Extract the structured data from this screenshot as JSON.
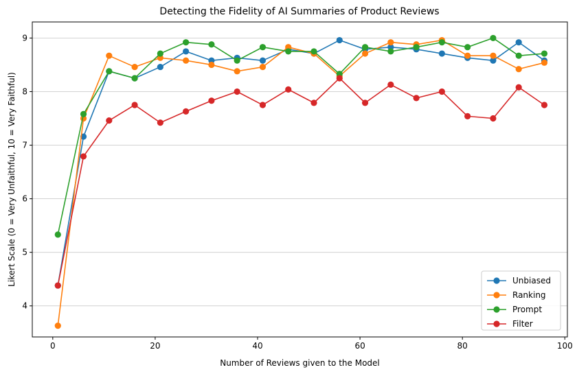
{
  "chart_data": {
    "type": "line",
    "title": "Detecting the Fidelity of AI Summaries of Product Reviews",
    "xlabel": "Number of Reviews given to the Model",
    "ylabel": "Likert Scale (0 = Very Unfaithful, 10 = Very Faithful)",
    "xlim": [
      -4,
      100.5
    ],
    "ylim": [
      3.42,
      9.3
    ],
    "xticks": [
      0,
      20,
      40,
      60,
      80,
      100
    ],
    "yticks": [
      4,
      5,
      6,
      7,
      8,
      9
    ],
    "grid": "horizontal",
    "legend_position": "lower-right",
    "x": [
      1,
      6,
      11,
      16,
      21,
      26,
      31,
      36,
      41,
      46,
      51,
      56,
      61,
      66,
      71,
      76,
      81,
      86,
      91,
      96
    ],
    "series": [
      {
        "name": "Unbiased",
        "color": "#1f77b4",
        "values": [
          4.38,
          7.16,
          8.38,
          8.25,
          8.46,
          8.75,
          8.58,
          8.63,
          8.58,
          8.79,
          8.71,
          8.96,
          8.79,
          8.83,
          8.79,
          8.71,
          8.63,
          8.58,
          8.92,
          8.58
        ]
      },
      {
        "name": "Ranking",
        "color": "#ff7f0e",
        "values": [
          3.63,
          7.5,
          8.67,
          8.46,
          8.63,
          8.58,
          8.5,
          8.38,
          8.46,
          8.83,
          8.71,
          8.29,
          8.71,
          8.92,
          8.88,
          8.96,
          8.67,
          8.67,
          8.42,
          8.54
        ]
      },
      {
        "name": "Prompt",
        "color": "#2ca02c",
        "values": [
          5.33,
          7.58,
          8.38,
          8.25,
          8.71,
          8.92,
          8.88,
          8.58,
          8.83,
          8.75,
          8.75,
          8.33,
          8.83,
          8.75,
          8.83,
          8.92,
          8.83,
          9.0,
          8.67,
          8.71
        ]
      },
      {
        "name": "Filter",
        "color": "#d62728",
        "values": [
          4.38,
          6.79,
          7.46,
          7.75,
          7.42,
          7.63,
          7.83,
          8.0,
          7.75,
          8.04,
          7.79,
          8.25,
          7.79,
          8.13,
          7.88,
          8.0,
          7.54,
          7.5,
          8.08,
          7.75
        ]
      }
    ]
  }
}
